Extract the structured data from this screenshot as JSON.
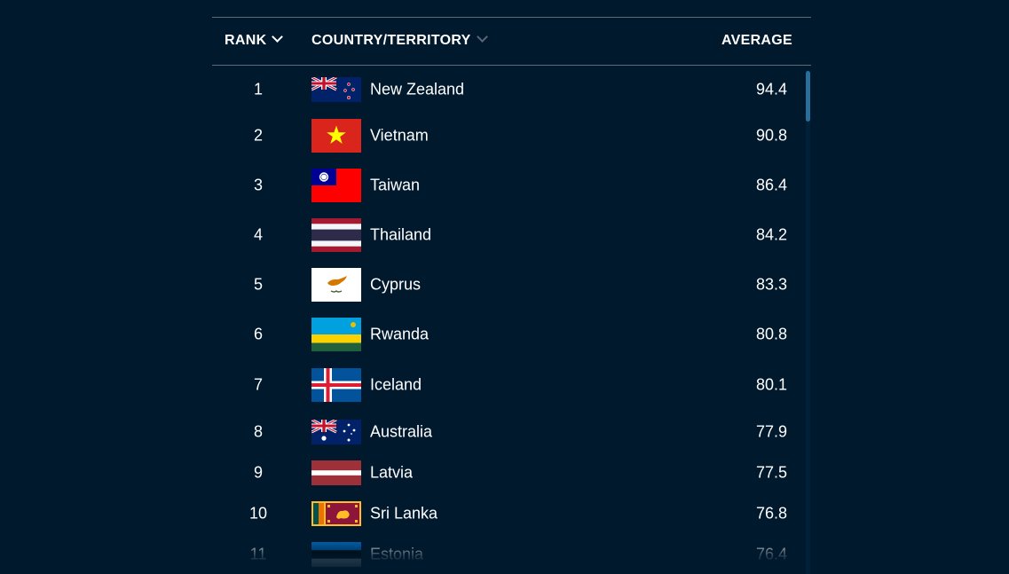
{
  "header": {
    "rank": "RANK",
    "country": "COUNTRY/TERRITORY",
    "average": "AVERAGE"
  },
  "rows": [
    {
      "rank": "1",
      "country": "New Zealand",
      "average": "94.4",
      "flag": "new-zealand-flag"
    },
    {
      "rank": "2",
      "country": "Vietnam",
      "average": "90.8",
      "flag": "vietnam-flag"
    },
    {
      "rank": "3",
      "country": "Taiwan",
      "average": "86.4",
      "flag": "taiwan-flag"
    },
    {
      "rank": "4",
      "country": "Thailand",
      "average": "84.2",
      "flag": "thailand-flag"
    },
    {
      "rank": "5",
      "country": "Cyprus",
      "average": "83.3",
      "flag": "cyprus-flag"
    },
    {
      "rank": "6",
      "country": "Rwanda",
      "average": "80.8",
      "flag": "rwanda-flag"
    },
    {
      "rank": "7",
      "country": "Iceland",
      "average": "80.1",
      "flag": "iceland-flag"
    },
    {
      "rank": "8",
      "country": "Australia",
      "average": "77.9",
      "flag": "australia-flag"
    },
    {
      "rank": "9",
      "country": "Latvia",
      "average": "77.5",
      "flag": "latvia-flag"
    },
    {
      "rank": "10",
      "country": "Sri Lanka",
      "average": "76.8",
      "flag": "sri-lanka-flag"
    },
    {
      "rank": "11",
      "country": "Estonia",
      "average": "76.4",
      "flag": "estonia-flag"
    }
  ],
  "colors": {
    "background": "#00192d",
    "divider": "#5d6b78",
    "scroll_thumb": "#2a6f9c"
  }
}
